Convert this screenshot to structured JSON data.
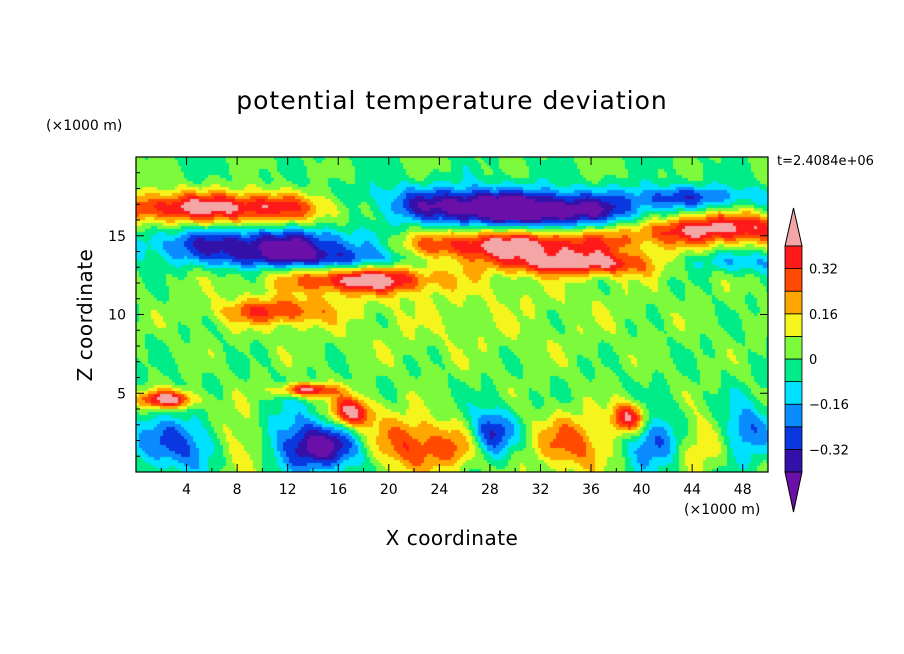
{
  "chart_data": {
    "type": "heatmap",
    "title": "potential temperature deviation",
    "xlabel": "X coordinate",
    "ylabel": "Z coordinate",
    "x_units": "(×1000 m)",
    "z_units": "(×1000 m)",
    "time_label": "t=2.4084e+06",
    "xlim": [
      0,
      50
    ],
    "ylim": [
      0,
      20
    ],
    "x_ticks": [
      4,
      8,
      12,
      16,
      20,
      24,
      28,
      32,
      36,
      40,
      44,
      48
    ],
    "y_ticks": [
      5,
      10,
      15
    ],
    "colorbar": {
      "levels": [
        -0.4,
        -0.32,
        -0.24,
        -0.16,
        -0.08,
        0,
        0.08,
        0.16,
        0.24,
        0.32,
        0.4
      ],
      "tick_values": [
        0.32,
        0.16,
        0,
        -0.16,
        -0.32
      ],
      "tick_labels": [
        "0.32",
        "0.16",
        "0",
        "−0.16",
        "−0.32"
      ],
      "colors": [
        "#6a0fa8",
        "#3311a8",
        "#0a38e0",
        "#0a8cff",
        "#00e0ff",
        "#00ec88",
        "#7dfa3c",
        "#f5f51d",
        "#ffa600",
        "#ff4a00",
        "#ff1a1a",
        "#f4a6a6"
      ],
      "extend": "both"
    },
    "features": [
      {
        "x": 7,
        "z": 16.8,
        "sx": 8,
        "sz": 0.7,
        "v": 0.45
      },
      {
        "x": 11,
        "z": 14.5,
        "sx": 7,
        "sz": 0.7,
        "v": -0.42
      },
      {
        "x": 14,
        "z": 13.5,
        "sx": 6,
        "sz": 0.5,
        "v": -0.3
      },
      {
        "x": 26,
        "z": 17.0,
        "sx": 7,
        "sz": 0.8,
        "v": -0.4
      },
      {
        "x": 33,
        "z": 16.4,
        "sx": 6,
        "sz": 0.7,
        "v": -0.36
      },
      {
        "x": 29,
        "z": 14.4,
        "sx": 7,
        "sz": 0.7,
        "v": 0.45
      },
      {
        "x": 36,
        "z": 13.2,
        "sx": 5,
        "sz": 0.5,
        "v": 0.42
      },
      {
        "x": 18,
        "z": 12.2,
        "sx": 4,
        "sz": 0.6,
        "v": 0.42
      },
      {
        "x": 11,
        "z": 10.2,
        "sx": 3,
        "sz": 0.6,
        "v": 0.3
      },
      {
        "x": 46,
        "z": 15.5,
        "sx": 5,
        "sz": 0.7,
        "v": 0.45
      },
      {
        "x": 44,
        "z": 17.5,
        "sx": 4,
        "sz": 0.5,
        "v": -0.24
      },
      {
        "x": 46,
        "z": 13.3,
        "sx": 6,
        "sz": 0.5,
        "v": -0.2
      },
      {
        "x": 25,
        "z": 10.5,
        "sx": 14,
        "sz": 3,
        "v": 0.07
      },
      {
        "x": 2.5,
        "z": 4.6,
        "sx": 1.6,
        "sz": 0.4,
        "v": 0.45
      },
      {
        "x": 13.5,
        "z": 5.2,
        "sx": 1.5,
        "sz": 0.3,
        "v": 0.45
      },
      {
        "x": 17,
        "z": 3.8,
        "sx": 1.2,
        "sz": 0.7,
        "v": 0.45
      },
      {
        "x": 39,
        "z": 3.4,
        "sx": 1.0,
        "sz": 0.7,
        "v": 0.45
      },
      {
        "x": 4,
        "z": 1.8,
        "sx": 3,
        "sz": 1.2,
        "v": -0.3
      },
      {
        "x": 8,
        "z": 2.0,
        "sx": 2,
        "sz": 1.4,
        "v": 0.26
      },
      {
        "x": 12,
        "z": 2.4,
        "sx": 2,
        "sz": 1.4,
        "v": -0.2
      },
      {
        "x": 15,
        "z": 1.5,
        "sx": 2,
        "sz": 1.0,
        "v": -0.4
      },
      {
        "x": 21.5,
        "z": 1.8,
        "sx": 2.2,
        "sz": 1.3,
        "v": 0.3
      },
      {
        "x": 26,
        "z": 1.5,
        "sx": 1.8,
        "sz": 1.0,
        "v": 0.24
      },
      {
        "x": 28,
        "z": 2.3,
        "sx": 1.3,
        "sz": 1.1,
        "v": -0.4
      },
      {
        "x": 34.5,
        "z": 1.8,
        "sx": 2.2,
        "sz": 1.3,
        "v": 0.28
      },
      {
        "x": 41,
        "z": 2.0,
        "sx": 1.6,
        "sz": 1.2,
        "v": -0.3
      },
      {
        "x": 45,
        "z": 2.0,
        "sx": 2,
        "sz": 1.2,
        "v": 0.2
      },
      {
        "x": 48,
        "z": 2.5,
        "sx": 1.5,
        "sz": 1.2,
        "v": -0.3
      }
    ]
  }
}
